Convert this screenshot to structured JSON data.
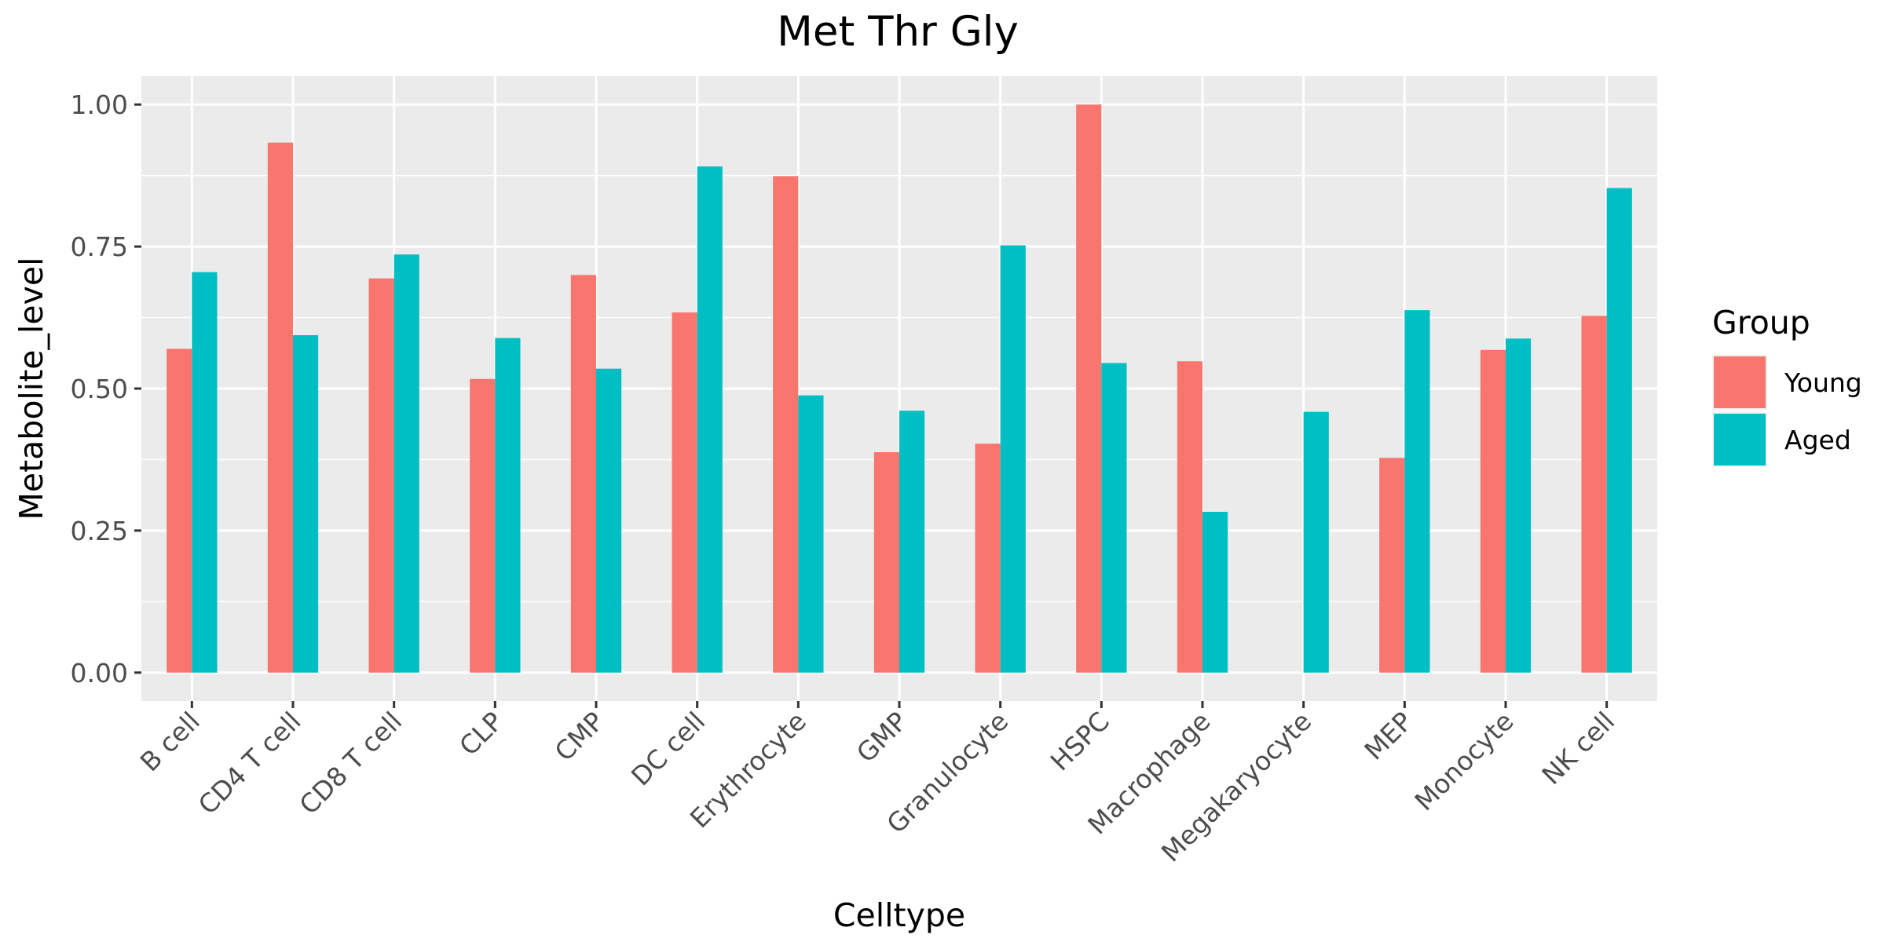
{
  "chart_data": {
    "type": "bar",
    "title": "Met Thr Gly",
    "xlabel": "Celltype",
    "ylabel": "Metabolite_level",
    "categories": [
      "B cell",
      "CD4 T cell",
      "CD8 T cell",
      "CLP",
      "CMP",
      "DC cell",
      "Erythrocyte",
      "GMP",
      "Granulocyte",
      "HSPC",
      "Macrophage",
      "Megakaryocyte",
      "MEP",
      "Monocyte",
      "NK cell"
    ],
    "series": [
      {
        "name": "Young",
        "color": "#F8766D",
        "values": [
          0.57,
          0.933,
          0.694,
          0.517,
          0.7,
          0.634,
          0.874,
          0.388,
          0.403,
          1.0,
          0.548,
          null,
          0.378,
          0.568,
          0.628
        ]
      },
      {
        "name": "Aged",
        "color": "#00BFC4",
        "values": [
          0.705,
          0.594,
          0.736,
          0.589,
          0.535,
          0.891,
          0.488,
          0.461,
          0.752,
          0.545,
          0.283,
          0.459,
          0.638,
          0.588,
          0.853
        ]
      }
    ],
    "ylim": [
      -0.05,
      1.05
    ],
    "yticks": [
      0.0,
      0.25,
      0.5,
      0.75,
      1.0
    ],
    "ytick_labels": [
      "0.00",
      "0.25",
      "0.50",
      "0.75",
      "1.00"
    ],
    "grid": true,
    "panel_background": "#EBEBEB",
    "legend": {
      "title": "Group",
      "position": "right"
    }
  }
}
